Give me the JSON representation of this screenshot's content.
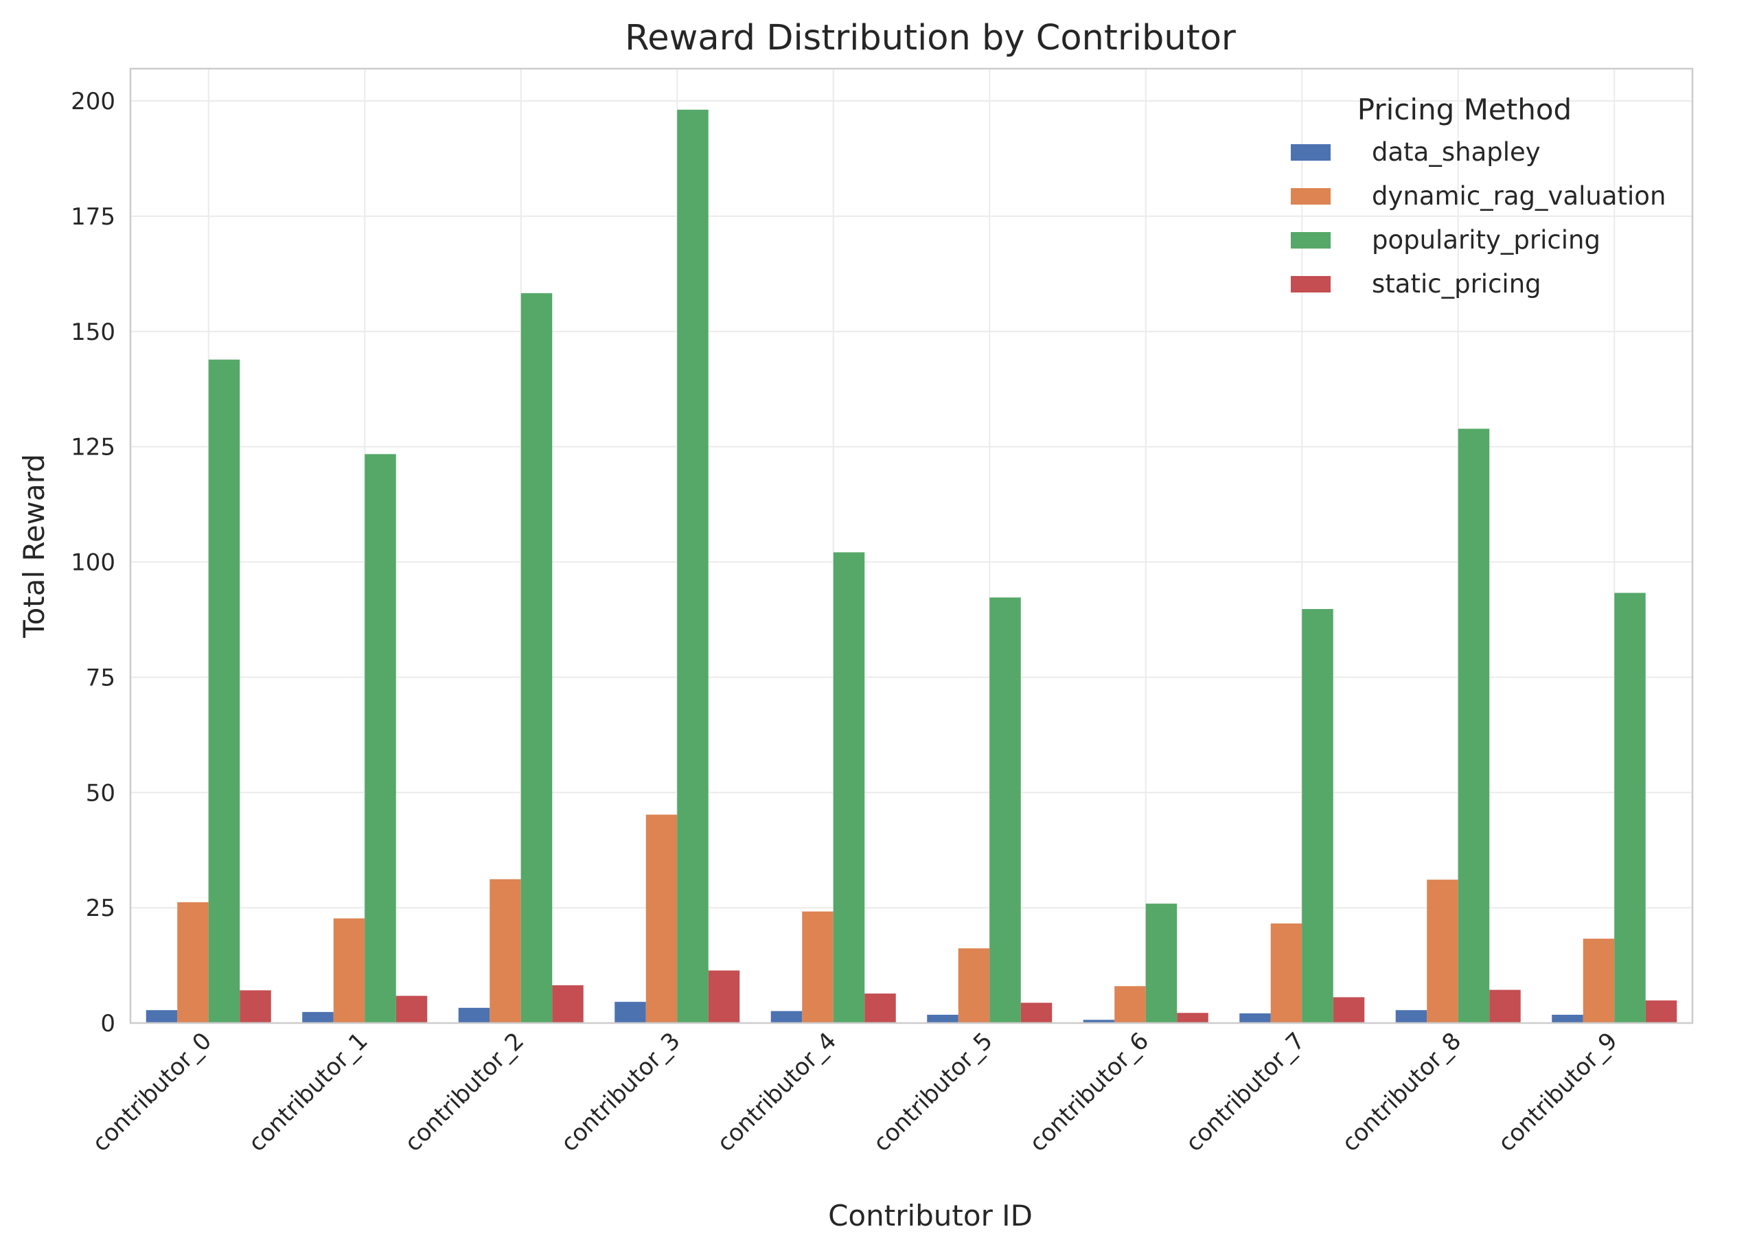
{
  "chart_data": {
    "type": "bar",
    "title": "Reward Distribution by Contributor",
    "xlabel": "Contributor ID",
    "ylabel": "Total Reward",
    "ylim": [
      0,
      207
    ],
    "yticks": [
      "0",
      "25",
      "50",
      "75",
      "100",
      "125",
      "150",
      "175",
      "200"
    ],
    "grid": true,
    "legend": {
      "title": "Pricing Method",
      "placement": "top-right"
    },
    "categories": [
      "contributor_0",
      "contributor_1",
      "contributor_2",
      "contributor_3",
      "contributor_4",
      "contributor_5",
      "contributor_6",
      "contributor_7",
      "contributor_8",
      "contributor_9"
    ],
    "series": [
      {
        "name": "data_shapley",
        "color": "#4c72b0",
        "values": [
          2.8,
          2.4,
          3.3,
          4.6,
          2.6,
          1.8,
          0.7,
          2.1,
          2.8,
          1.8
        ]
      },
      {
        "name": "dynamic_rag_valuation",
        "color": "#dd8452",
        "values": [
          26.2,
          22.7,
          31.2,
          45.2,
          24.2,
          16.2,
          8.0,
          21.6,
          31.1,
          18.3
        ]
      },
      {
        "name": "popularity_pricing",
        "color": "#55a868",
        "values": [
          143.9,
          123.4,
          158.3,
          198.1,
          102.1,
          92.3,
          25.9,
          89.8,
          128.9,
          93.3
        ]
      },
      {
        "name": "static_pricing",
        "color": "#c44e52",
        "values": [
          7.1,
          5.9,
          8.2,
          11.4,
          6.4,
          4.4,
          2.2,
          5.6,
          7.2,
          4.9
        ]
      }
    ]
  }
}
